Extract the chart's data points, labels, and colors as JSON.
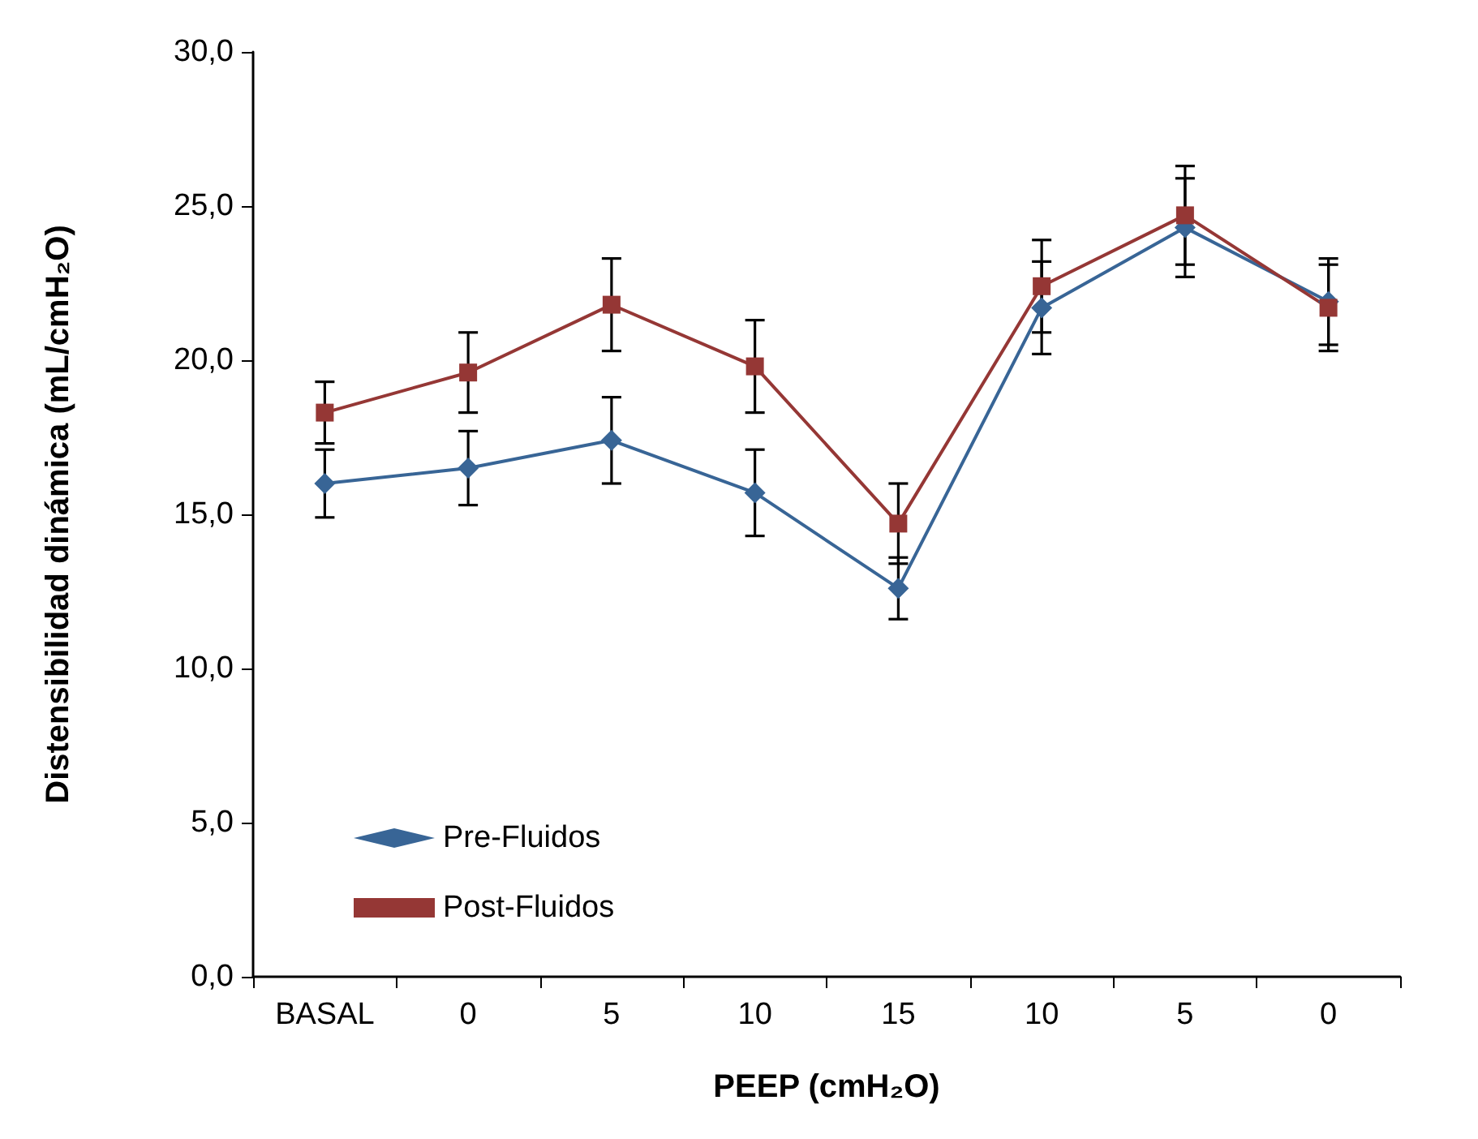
{
  "chart_data": {
    "type": "line",
    "xlabel": "PEEP (cmH₂O)",
    "ylabel": "Distensibilidad dinámica (mL/cmH₂O)",
    "categories": [
      "BASAL",
      "0",
      "5",
      "10",
      "15",
      "10",
      "5",
      "0"
    ],
    "ylim": [
      0,
      30
    ],
    "yticks": [
      {
        "value": 0,
        "label": "0,0"
      },
      {
        "value": 5,
        "label": "5,0"
      },
      {
        "value": 10,
        "label": "10,0"
      },
      {
        "value": 15,
        "label": "15,0"
      },
      {
        "value": 20,
        "label": "20,0"
      },
      {
        "value": 25,
        "label": "25,0"
      },
      {
        "value": 30,
        "label": "30,0"
      }
    ],
    "grid": false,
    "legend": "bottom left",
    "series": [
      {
        "name": "Pre-Fluidos",
        "color": "#386596",
        "marker": "diamond",
        "values": [
          16.0,
          16.5,
          17.4,
          15.7,
          12.6,
          21.7,
          24.3,
          21.9
        ],
        "errors": [
          1.1,
          1.2,
          1.4,
          1.4,
          1.0,
          1.5,
          1.6,
          1.4
        ]
      },
      {
        "name": "Post-Fluidos",
        "color": "#953735",
        "marker": "square",
        "values": [
          18.3,
          19.6,
          21.8,
          19.8,
          14.7,
          22.4,
          24.7,
          21.7
        ],
        "errors": [
          1.0,
          1.3,
          1.5,
          1.5,
          1.3,
          1.5,
          1.6,
          1.4
        ]
      }
    ]
  }
}
